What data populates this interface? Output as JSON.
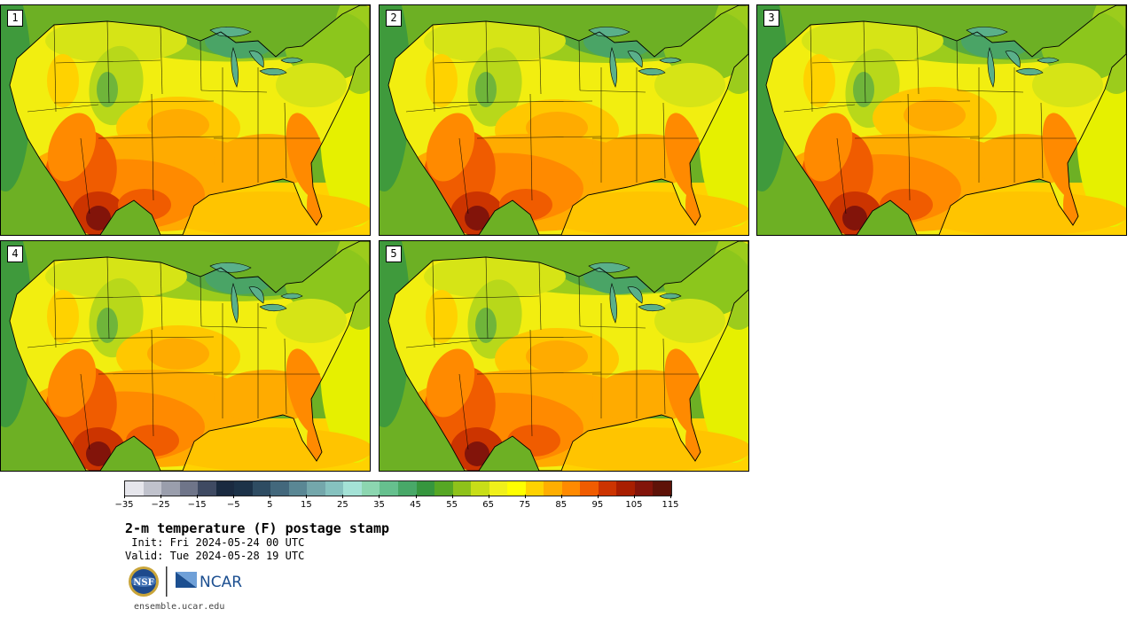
{
  "panels": [
    {
      "label": "1",
      "variant": 1
    },
    {
      "label": "2",
      "variant": 2
    },
    {
      "label": "3",
      "variant": 3
    },
    {
      "label": "4",
      "variant": 4
    },
    {
      "label": "5",
      "variant": 5
    }
  ],
  "colorbar": {
    "colors": [
      "#e6e6ec",
      "#c0c2cc",
      "#9a9eac",
      "#6f7589",
      "#3f4a62",
      "#1a2a40",
      "#1c3248",
      "#2e4c62",
      "#43687c",
      "#5a8794",
      "#74a7ab",
      "#86c2bf",
      "#a4e2d6",
      "#8cd6b0",
      "#66c08e",
      "#48a868",
      "#36963e",
      "#56a724",
      "#8ec21a",
      "#c8de18",
      "#f0f01a",
      "#ffff00",
      "#ffd200",
      "#ffae00",
      "#ff8a00",
      "#f05c00",
      "#cc3400",
      "#a81e00",
      "#82140a",
      "#5e1208"
    ],
    "tick_values": [
      "−35",
      "−25",
      "−15",
      "−5",
      "5",
      "15",
      "25",
      "35",
      "45",
      "55",
      "65",
      "75",
      "85",
      "95",
      "105",
      "115"
    ]
  },
  "title": "2-m temperature (F) postage stamp",
  "init_line": " Init: Fri 2024-05-24 00 UTC",
  "valid_line": "Valid: Tue 2024-05-28 19 UTC",
  "logos": {
    "nsf": "NSF",
    "ncar": "NCAR"
  },
  "footer": "ensemble.ucar.edu"
}
